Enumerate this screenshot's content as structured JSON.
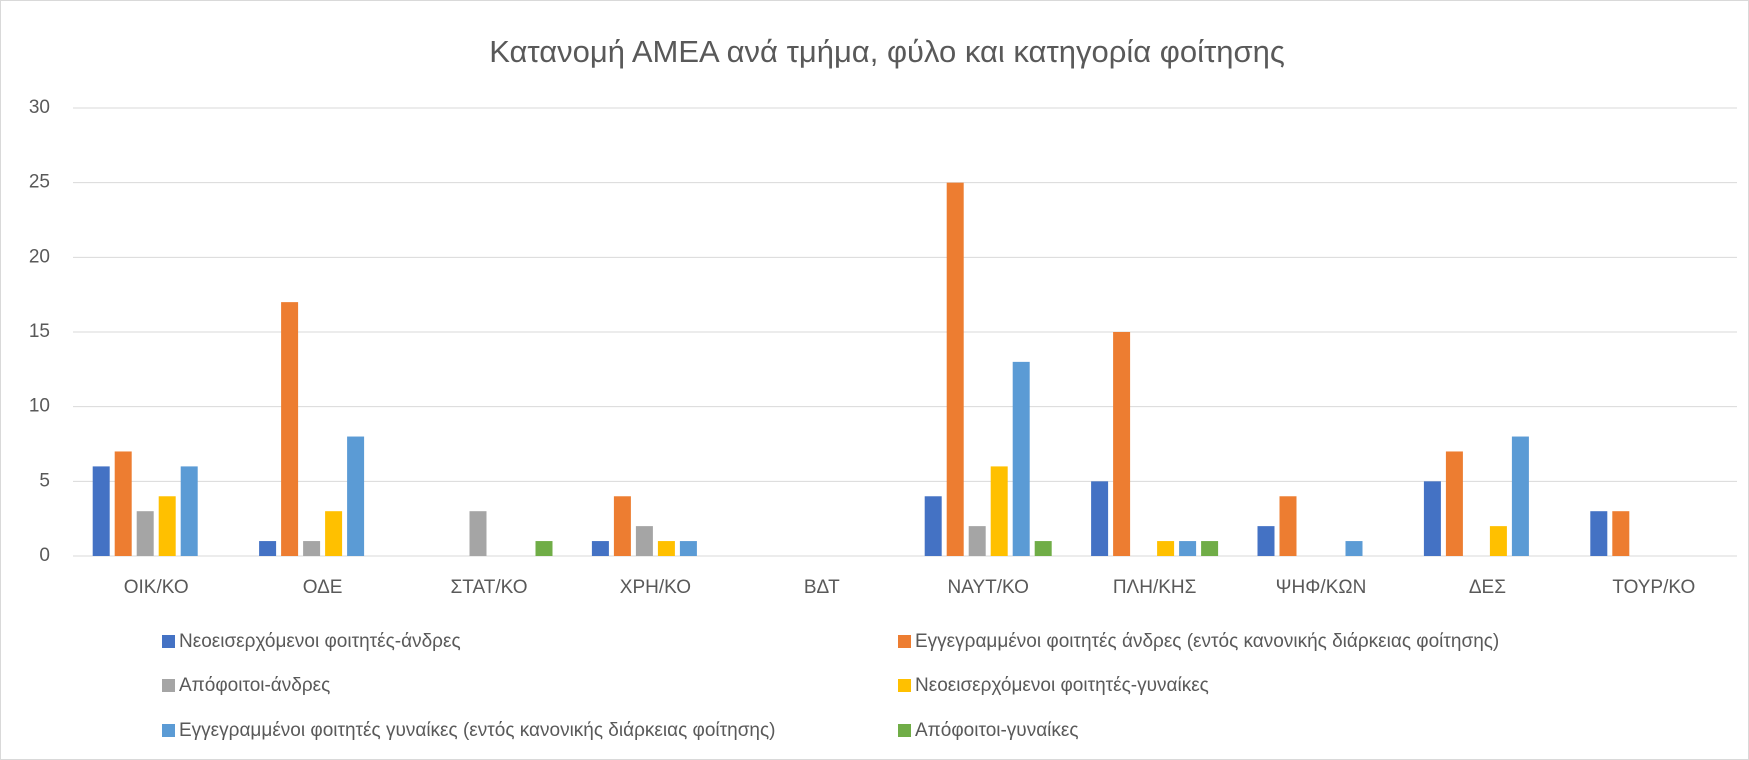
{
  "chart_data": {
    "type": "bar",
    "title": "Κατανομή ΑΜΕΑ ανά τμήμα, φύλο και κατηγορία φοίτησης",
    "categories": [
      "ΟΙΚ/ΚΟ",
      "ΟΔΕ",
      "ΣΤΑΤ/ΚΟ",
      "ΧΡΗ/ΚΟ",
      "ΒΔΤ",
      "ΝΑΥΤ/ΚΟ",
      "ΠΛΗ/ΚΗΣ",
      "ΨΗΦ/ΚΩΝ",
      "ΔΕΣ",
      "ΤΟΥΡ/ΚΟ"
    ],
    "series": [
      {
        "name": "Νεοεισερχόμενοι φοιτητές-άνδρες",
        "color": "#4472c4",
        "values": [
          6,
          1,
          0,
          1,
          0,
          4,
          5,
          2,
          5,
          3
        ]
      },
      {
        "name": "Εγγεγραμμένοι φοιτητές άνδρες (εντός κανονικής διάρκειας φοίτησης)",
        "color": "#ed7d31",
        "values": [
          7,
          17,
          0,
          4,
          0,
          25,
          15,
          4,
          7,
          3
        ]
      },
      {
        "name": "Απόφοιτοι-άνδρες",
        "color": "#a5a5a5",
        "values": [
          3,
          1,
          3,
          2,
          0,
          2,
          0,
          0,
          0,
          0
        ]
      },
      {
        "name": "Νεοεισερχόμενοι φοιτητές-γυναίκες",
        "color": "#ffc000",
        "values": [
          4,
          3,
          0,
          1,
          0,
          6,
          1,
          0,
          2,
          0
        ]
      },
      {
        "name": "Εγγεγραμμένοι φοιτητές γυναίκες (εντός κανονικής διάρκειας φοίτησης)",
        "color": "#5b9bd5",
        "values": [
          6,
          8,
          0,
          1,
          0,
          13,
          1,
          1,
          8,
          0
        ]
      },
      {
        "name": "Απόφοιτοι-γυναίκες",
        "color": "#70ad47",
        "values": [
          0,
          0,
          1,
          0,
          0,
          1,
          1,
          0,
          0,
          0
        ]
      }
    ],
    "ylim": [
      0,
      30
    ],
    "yticks": [
      0,
      5,
      10,
      15,
      20,
      25,
      30
    ],
    "grid": true,
    "legend": "bottom"
  }
}
